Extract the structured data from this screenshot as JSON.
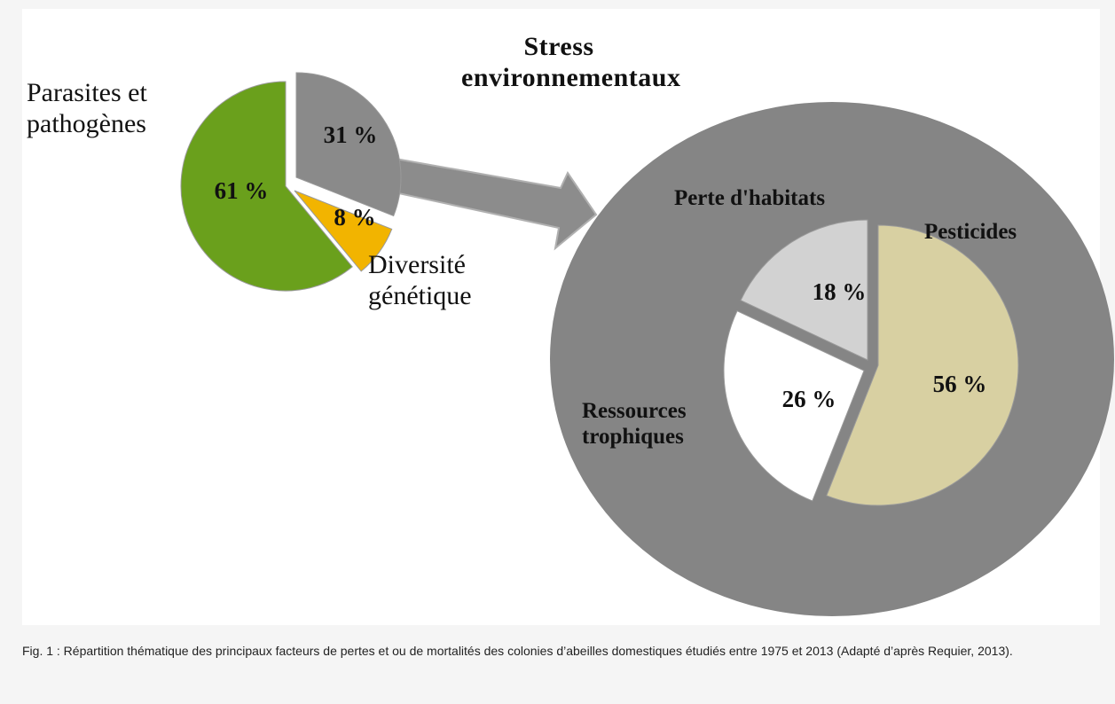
{
  "chart_data": [
    {
      "type": "pie",
      "categories": [
        "Stress environnementaux",
        "Diversité génétique",
        "Parasites et pathogènes"
      ],
      "values": [
        31,
        8,
        61
      ],
      "value_labels": [
        "31 %",
        "8 %",
        "61 %"
      ],
      "colors": [
        "#8a8a8a",
        "#f2b400",
        "#6aa01c"
      ]
    },
    {
      "type": "pie",
      "categories": [
        "Pesticides",
        "Ressources trophiques",
        "Perte d'habitats"
      ],
      "values": [
        56,
        26,
        18
      ],
      "value_labels": [
        "56 %",
        "26 %",
        "18 %"
      ],
      "colors": [
        "#d8d0a2",
        "#ffffff",
        "#d2d2d2"
      ]
    }
  ],
  "caption": "Fig. 1 : Répartition thématique des principaux facteurs de pertes et ou de mortalités des colonies d’abeilles domestiques étudiés entre 1975 et 2013 (Adapté d’après Requier, 2013)."
}
